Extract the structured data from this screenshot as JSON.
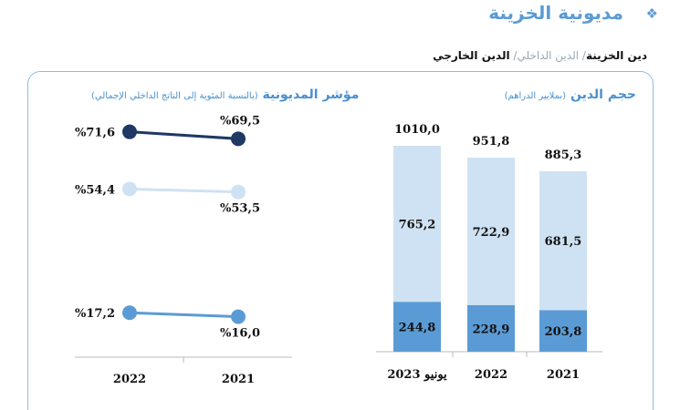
{
  "page": {
    "title": "مديونية الخزينة",
    "title_icon": "diamond-bullet-icon"
  },
  "breadcrumb": {
    "item1": "دين الخزينة",
    "sep1": "/",
    "item2": "الدين الداخلي",
    "sep2": "/",
    "item3": "الدين الخارجي"
  },
  "colors": {
    "accent": "#5b9bd5",
    "dark_series": "#1f3864",
    "light_series": "#cfe2f3",
    "mid_series": "#5b9bd5",
    "border": "#8fbde3"
  },
  "chart_data": [
    {
      "type": "bar",
      "title": "حجم الدين",
      "subtitle": "(بملايير الدراهم)",
      "categories": [
        "يونيو 2023",
        "2022",
        "2021"
      ],
      "totals": [
        "1010,0",
        "951,8",
        "885,3"
      ],
      "series": [
        {
          "values": [
            244.8,
            228.9,
            203.8
          ],
          "labels": [
            "244,8",
            "228,9",
            "203,8"
          ]
        },
        {
          "values": [
            765.2,
            722.9,
            681.5
          ],
          "labels": [
            "765,2",
            "722,9",
            "681,5"
          ]
        }
      ],
      "stacked": true
    },
    {
      "type": "line",
      "title": "مؤشر المديونية",
      "subtitle": "(بالنسبة المئوية إلى الناتج الداخلي الإجمالي)",
      "categories": [
        "2022",
        "2021"
      ],
      "series": [
        {
          "values": [
            71.6,
            69.5
          ],
          "labels": [
            "%71,6",
            "%69,5"
          ]
        },
        {
          "values": [
            54.4,
            53.5
          ],
          "labels": [
            "%54,4",
            "%53,5"
          ]
        },
        {
          "values": [
            17.2,
            16.0
          ],
          "labels": [
            "%17,2",
            "%16,0"
          ]
        }
      ]
    }
  ]
}
